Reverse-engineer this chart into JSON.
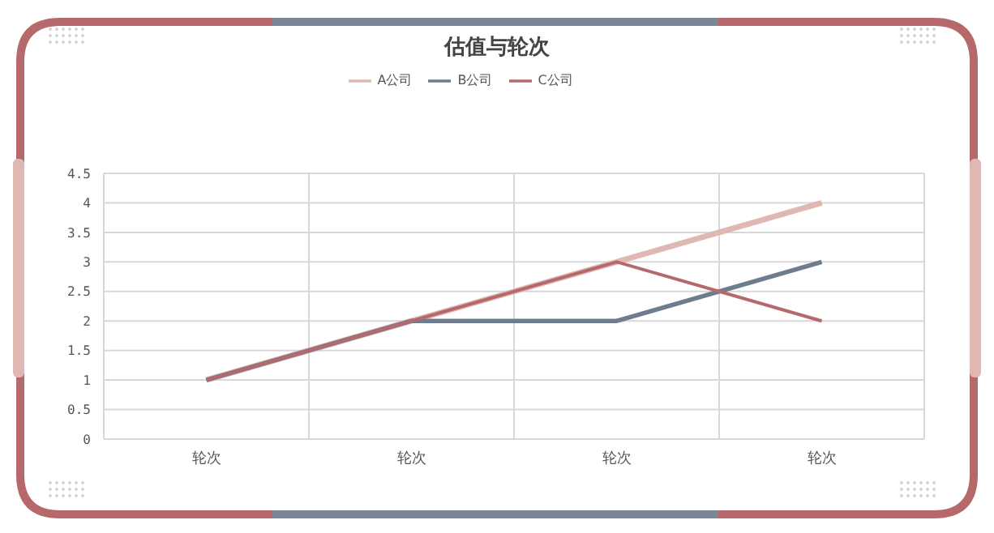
{
  "chart_data": {
    "type": "line",
    "title": "估值与轮次",
    "categories": [
      "轮次",
      "轮次",
      "轮次",
      "轮次"
    ],
    "series": [
      {
        "name": "A公司",
        "color": "#e0b8b3",
        "values": [
          1,
          2,
          3,
          4
        ]
      },
      {
        "name": "B公司",
        "color": "#6e7d8e",
        "values": [
          1,
          2,
          2,
          3
        ]
      },
      {
        "name": "C公司",
        "color": "#b5696b",
        "values": [
          1,
          2,
          3,
          2
        ]
      }
    ],
    "ylim": [
      0,
      4.5
    ],
    "yticks": [
      0,
      0.5,
      1,
      1.5,
      2,
      2.5,
      3,
      3.5,
      4,
      4.5
    ],
    "grid": true,
    "legend": "top",
    "marker": "none",
    "line_style": "solid"
  }
}
